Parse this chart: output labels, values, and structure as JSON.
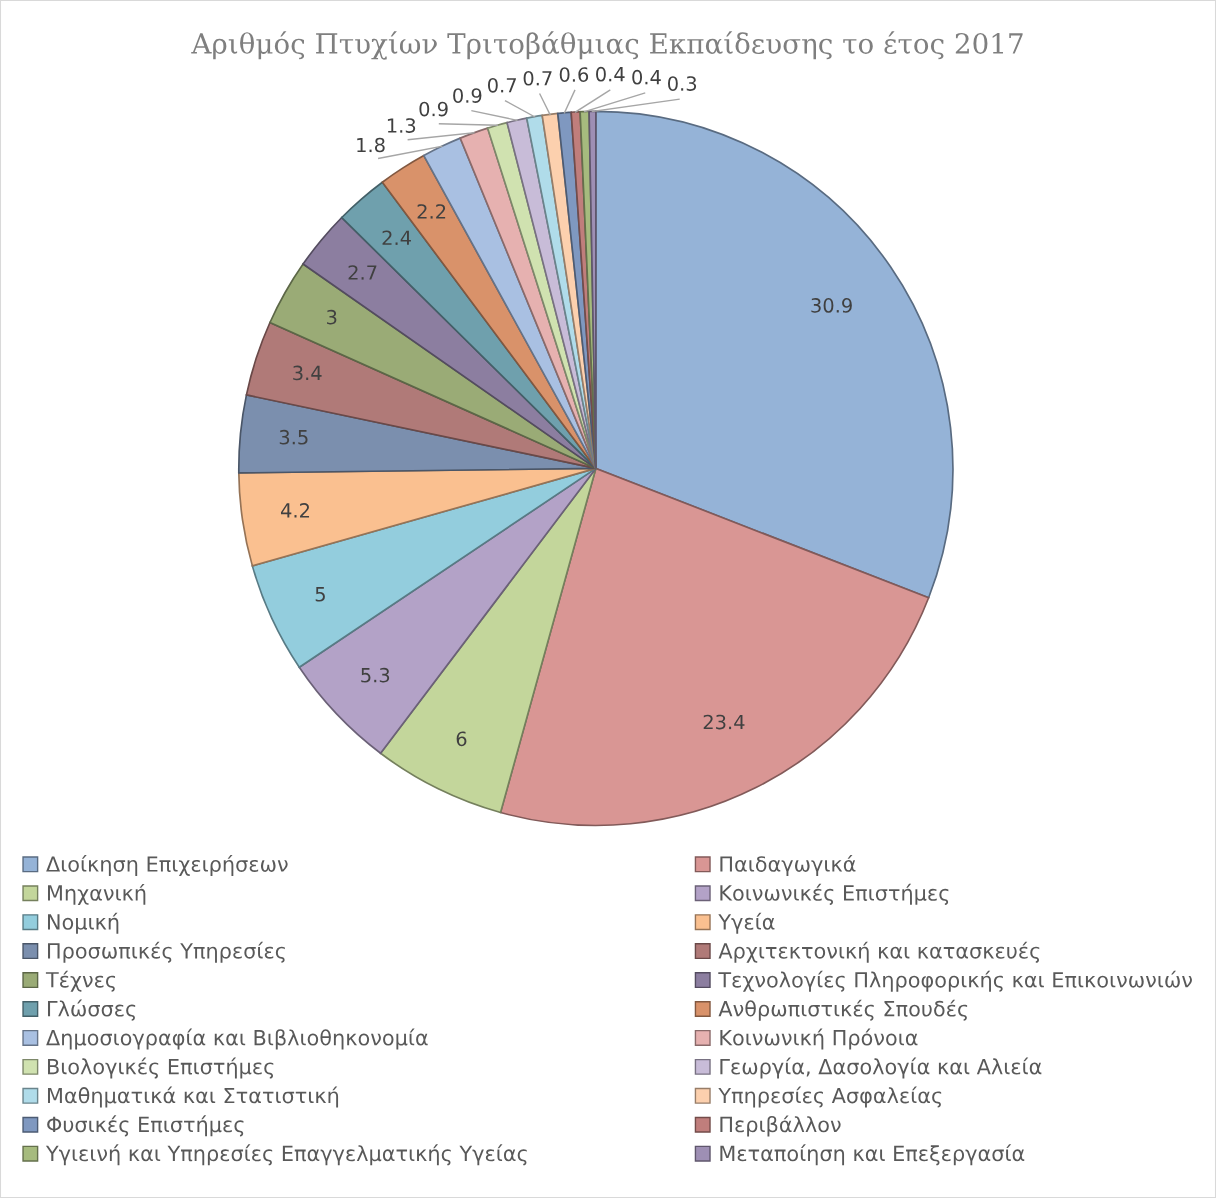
{
  "chart_data": {
    "type": "pie",
    "title": "Αριθμός Πτυχίων Τριτοβάθμιας Εκπαίδευσης το έτος 2017",
    "categories": [
      "Διοίκηση Επιχειρήσεων",
      "Παιδαγωγικά",
      "Μηχανική",
      "Κοινωνικές Επιστήμες",
      "Νομική",
      "Υγεία",
      "Προσωπικές Υπηρεσίες",
      "Αρχιτεκτονική και κατασκευές",
      "Τέχνες",
      "Τεχνολογίες Πληροφορικής και Επικοινωνιών",
      "Γλώσσες",
      "Ανθρωπιστικές Σπουδές",
      "Δημοσιογραφία και Βιβλιοθηκονομία",
      "Κοινωνική Πρόνοια",
      "Βιολογικές Επιστήμες",
      "Γεωργία, Δασολογία και Αλιεία",
      "Μαθηματικά και Στατιστική",
      "Υπηρεσίες Ασφαλείας",
      "Φυσικές Επιστήμες",
      "Περιβάλλον",
      "Υγιεινή και Υπηρεσίες Επαγγελματικής Υγείας",
      "Μεταποίηση και Επεξεργασία"
    ],
    "values": [
      30.9,
      23.4,
      6,
      5.3,
      5,
      4.2,
      3.5,
      3.4,
      3,
      2.7,
      2.4,
      2.2,
      1.8,
      1.3,
      0.9,
      0.9,
      0.7,
      0.7,
      0.6,
      0.4,
      0.4,
      0.3
    ],
    "colors": [
      "#95b3d7",
      "#d99694",
      "#c3d69b",
      "#b3a2c7",
      "#93cddd",
      "#fac090",
      "#7b8fae",
      "#b07a78",
      "#9aab76",
      "#8c7ea0",
      "#6fa0ad",
      "#d9926a",
      "#a9c0e2",
      "#e6b1b0",
      "#d0e2b0",
      "#c8bcd8",
      "#b0dcea",
      "#fcd0ae",
      "#7f98c0",
      "#c07e7c",
      "#a6bb7e",
      "#9e8fb4"
    ],
    "data_labels": true,
    "legend": "bottom"
  }
}
